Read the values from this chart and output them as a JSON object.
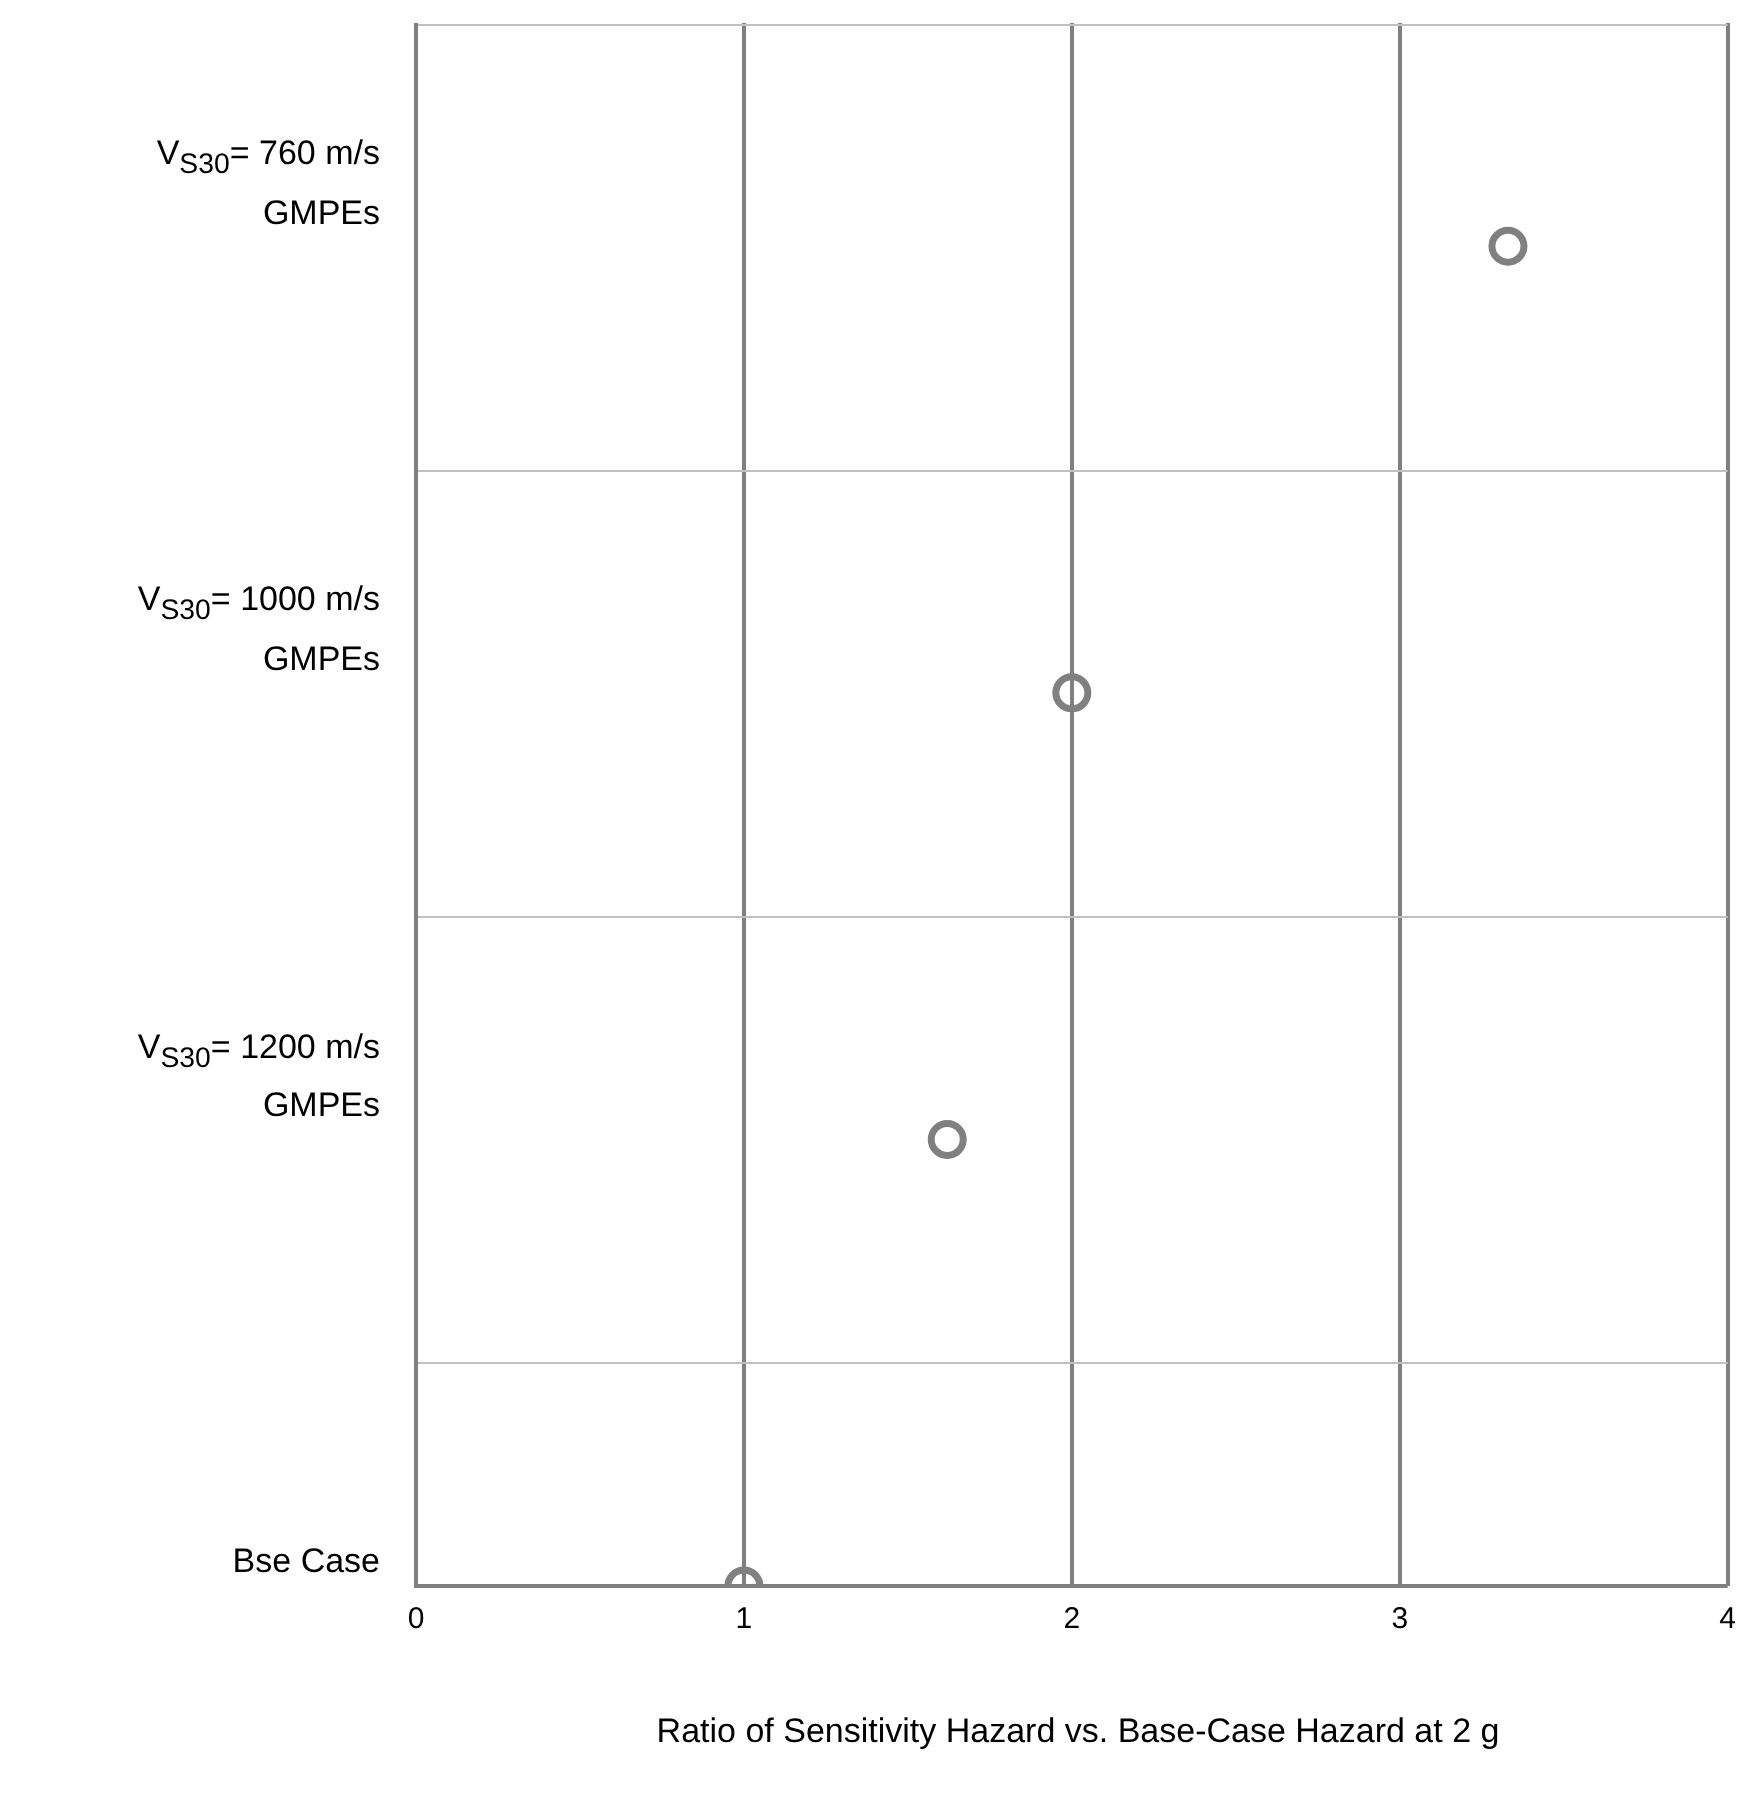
{
  "chart_data": {
    "type": "scatter",
    "orientation": "horizontal",
    "xlabel": "Ratio of Sensitivity Hazard vs. Base-Case Hazard at 2 g",
    "categories": [
      "V$_{S30}$= 760 m/s\nGMPEs",
      "V$_{S30}$= 1000 m/s\nGMPEs",
      "V$_{S30}$= 1200 m/s\nGMPEs",
      "Bse Case"
    ],
    "values": [
      3.33,
      2.0,
      1.62,
      1.0
    ],
    "color": "#808080",
    "marker": "circle",
    "xlim": [
      0,
      4
    ],
    "xticks": [
      0,
      1,
      2,
      3,
      4
    ],
    "grid": true,
    "legend": false
  }
}
